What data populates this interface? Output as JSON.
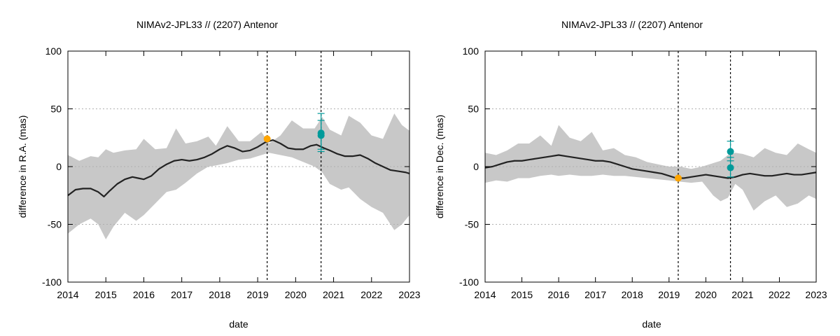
{
  "chart_data": [
    {
      "type": "line",
      "title": "NIMAv2-JPL33 // (2207) Antenor",
      "xlabel": "date",
      "ylabel": "difference in R.A. (mas)",
      "xlim": [
        2014,
        2023
      ],
      "ylim": [
        -100,
        100
      ],
      "xticks": [
        "2014",
        "2015",
        "2016",
        "2017",
        "2018",
        "2019",
        "2020",
        "2021",
        "2022",
        "2023"
      ],
      "yticks": [
        "-100",
        "-50",
        "0",
        "50",
        "100"
      ],
      "ytick_values": [
        -100,
        -50,
        0,
        50,
        100
      ],
      "grid": "horizontal-dotted",
      "vlines": [
        2019.25,
        2020.67
      ],
      "series": [
        {
          "name": "difference",
          "color": "#222222",
          "x": [
            2014.0,
            2014.2,
            2014.4,
            2014.6,
            2014.8,
            2014.95,
            2015.1,
            2015.3,
            2015.5,
            2015.7,
            2015.85,
            2016.0,
            2016.2,
            2016.4,
            2016.6,
            2016.8,
            2017.0,
            2017.2,
            2017.4,
            2017.6,
            2017.8,
            2018.0,
            2018.2,
            2018.4,
            2018.6,
            2018.8,
            2019.0,
            2019.2,
            2019.4,
            2019.6,
            2019.8,
            2020.0,
            2020.2,
            2020.4,
            2020.55,
            2020.75,
            2020.9,
            2021.1,
            2021.3,
            2021.5,
            2021.7,
            2021.9,
            2022.1,
            2022.3,
            2022.5,
            2022.7,
            2022.9,
            2023.0
          ],
          "y": [
            -25,
            -20,
            -19,
            -19,
            -22,
            -26,
            -21,
            -15,
            -11,
            -9,
            -10,
            -11,
            -8,
            -2,
            2,
            5,
            6,
            5,
            6,
            8,
            11,
            15,
            18,
            16,
            13,
            14,
            17,
            21,
            23,
            20,
            16,
            15,
            15,
            18,
            19,
            16,
            14,
            11,
            9,
            9,
            10,
            7,
            3,
            0,
            -3,
            -4,
            -5,
            -6
          ]
        }
      ],
      "bands": [
        {
          "name": "uncertainty",
          "color": "#c8c8c8",
          "x": [
            2014.0,
            2014.3,
            2014.6,
            2014.8,
            2015.0,
            2015.2,
            2015.5,
            2015.8,
            2016.0,
            2016.3,
            2016.6,
            2016.85,
            2017.1,
            2017.4,
            2017.7,
            2017.9,
            2018.2,
            2018.5,
            2018.8,
            2019.1,
            2019.3,
            2019.6,
            2019.9,
            2020.2,
            2020.5,
            2020.7,
            2020.9,
            2021.2,
            2021.4,
            2021.7,
            2022.0,
            2022.3,
            2022.6,
            2022.8,
            2023.0
          ],
          "upper": [
            10,
            5,
            9,
            8,
            15,
            12,
            14,
            15,
            24,
            15,
            16,
            33,
            20,
            22,
            26,
            18,
            35,
            22,
            22,
            30,
            20,
            27,
            40,
            33,
            33,
            43,
            32,
            27,
            44,
            38,
            27,
            24,
            46,
            36,
            31
          ],
          "lower": [
            -58,
            -50,
            -45,
            -50,
            -63,
            -52,
            -40,
            -47,
            -42,
            -32,
            -22,
            -20,
            -14,
            -6,
            0,
            1,
            3,
            6,
            7,
            10,
            12,
            10,
            8,
            4,
            0,
            -5,
            -15,
            -20,
            -18,
            -28,
            -35,
            -40,
            -55,
            -50,
            -42
          ]
        }
      ],
      "points": [
        {
          "name": "orange point",
          "color": "#ffa500",
          "x": 2019.25,
          "y": 24,
          "yerr_low": 24,
          "yerr_high": 24
        },
        {
          "name": "teal point A",
          "color": "#009a9a",
          "x": 2020.67,
          "y": 29,
          "yerr_low": 15,
          "yerr_high": 46
        },
        {
          "name": "teal point B",
          "color": "#009a9a",
          "x": 2020.67,
          "y": 27,
          "yerr_low": 13,
          "yerr_high": 40
        }
      ]
    },
    {
      "type": "line",
      "title": "NIMAv2-JPL33 // (2207) Antenor",
      "xlabel": "date",
      "ylabel": "difference in Dec. (mas)",
      "xlim": [
        2014,
        2023
      ],
      "ylim": [
        -100,
        100
      ],
      "xticks": [
        "2014",
        "2015",
        "2016",
        "2017",
        "2018",
        "2019",
        "2020",
        "2021",
        "2022",
        "2023"
      ],
      "yticks": [
        "-100",
        "-50",
        "0",
        "50",
        "100"
      ],
      "ytick_values": [
        -100,
        -50,
        0,
        50,
        100
      ],
      "grid": "horizontal-dotted",
      "vlines": [
        2019.25,
        2020.67
      ],
      "series": [
        {
          "name": "difference",
          "color": "#222222",
          "x": [
            2014.0,
            2014.2,
            2014.4,
            2014.6,
            2014.8,
            2015.0,
            2015.2,
            2015.4,
            2015.6,
            2015.8,
            2016.0,
            2016.2,
            2016.4,
            2016.6,
            2016.8,
            2017.0,
            2017.2,
            2017.4,
            2017.6,
            2017.8,
            2018.0,
            2018.2,
            2018.4,
            2018.6,
            2018.8,
            2019.0,
            2019.2,
            2019.4,
            2019.6,
            2019.8,
            2020.0,
            2020.2,
            2020.4,
            2020.6,
            2020.8,
            2021.0,
            2021.2,
            2021.4,
            2021.6,
            2021.8,
            2022.0,
            2022.2,
            2022.4,
            2022.6,
            2022.8,
            2023.0
          ],
          "y": [
            -1,
            0,
            2,
            4,
            5,
            5,
            6,
            7,
            8,
            9,
            10,
            9,
            8,
            7,
            6,
            5,
            5,
            4,
            2,
            0,
            -2,
            -3,
            -4,
            -5,
            -6,
            -8,
            -10,
            -10,
            -9,
            -8,
            -7,
            -8,
            -9,
            -10,
            -9,
            -7,
            -6,
            -7,
            -8,
            -8,
            -7,
            -6,
            -7,
            -7,
            -6,
            -5
          ]
        }
      ],
      "bands": [
        {
          "name": "uncertainty",
          "color": "#c8c8c8",
          "x": [
            2014.0,
            2014.3,
            2014.6,
            2014.9,
            2015.2,
            2015.5,
            2015.8,
            2016.0,
            2016.3,
            2016.6,
            2016.9,
            2017.2,
            2017.5,
            2017.8,
            2018.1,
            2018.4,
            2018.7,
            2019.0,
            2019.3,
            2019.6,
            2019.9,
            2020.2,
            2020.4,
            2020.6,
            2020.8,
            2021.0,
            2021.3,
            2021.6,
            2021.9,
            2022.2,
            2022.5,
            2022.8,
            2023.0
          ],
          "upper": [
            12,
            10,
            14,
            20,
            20,
            27,
            18,
            36,
            25,
            22,
            30,
            14,
            16,
            10,
            8,
            4,
            2,
            0,
            0,
            -2,
            0,
            3,
            5,
            10,
            12,
            11,
            8,
            16,
            12,
            10,
            20,
            15,
            12
          ],
          "lower": [
            -14,
            -12,
            -13,
            -10,
            -10,
            -8,
            -7,
            -8,
            -7,
            -8,
            -8,
            -7,
            -8,
            -8,
            -9,
            -10,
            -11,
            -12,
            -13,
            -14,
            -13,
            -25,
            -30,
            -27,
            -15,
            -20,
            -38,
            -30,
            -25,
            -35,
            -32,
            -25,
            -28
          ]
        }
      ],
      "points": [
        {
          "name": "orange point",
          "color": "#ffa500",
          "x": 2019.25,
          "y": -10,
          "yerr_low": -10,
          "yerr_high": -10
        },
        {
          "name": "teal point A",
          "color": "#009a9a",
          "x": 2020.67,
          "y": 13,
          "yerr_low": 5,
          "yerr_high": 22
        },
        {
          "name": "teal point B",
          "color": "#009a9a",
          "x": 2020.67,
          "y": -1,
          "yerr_low": -9,
          "yerr_high": 8
        }
      ]
    }
  ]
}
